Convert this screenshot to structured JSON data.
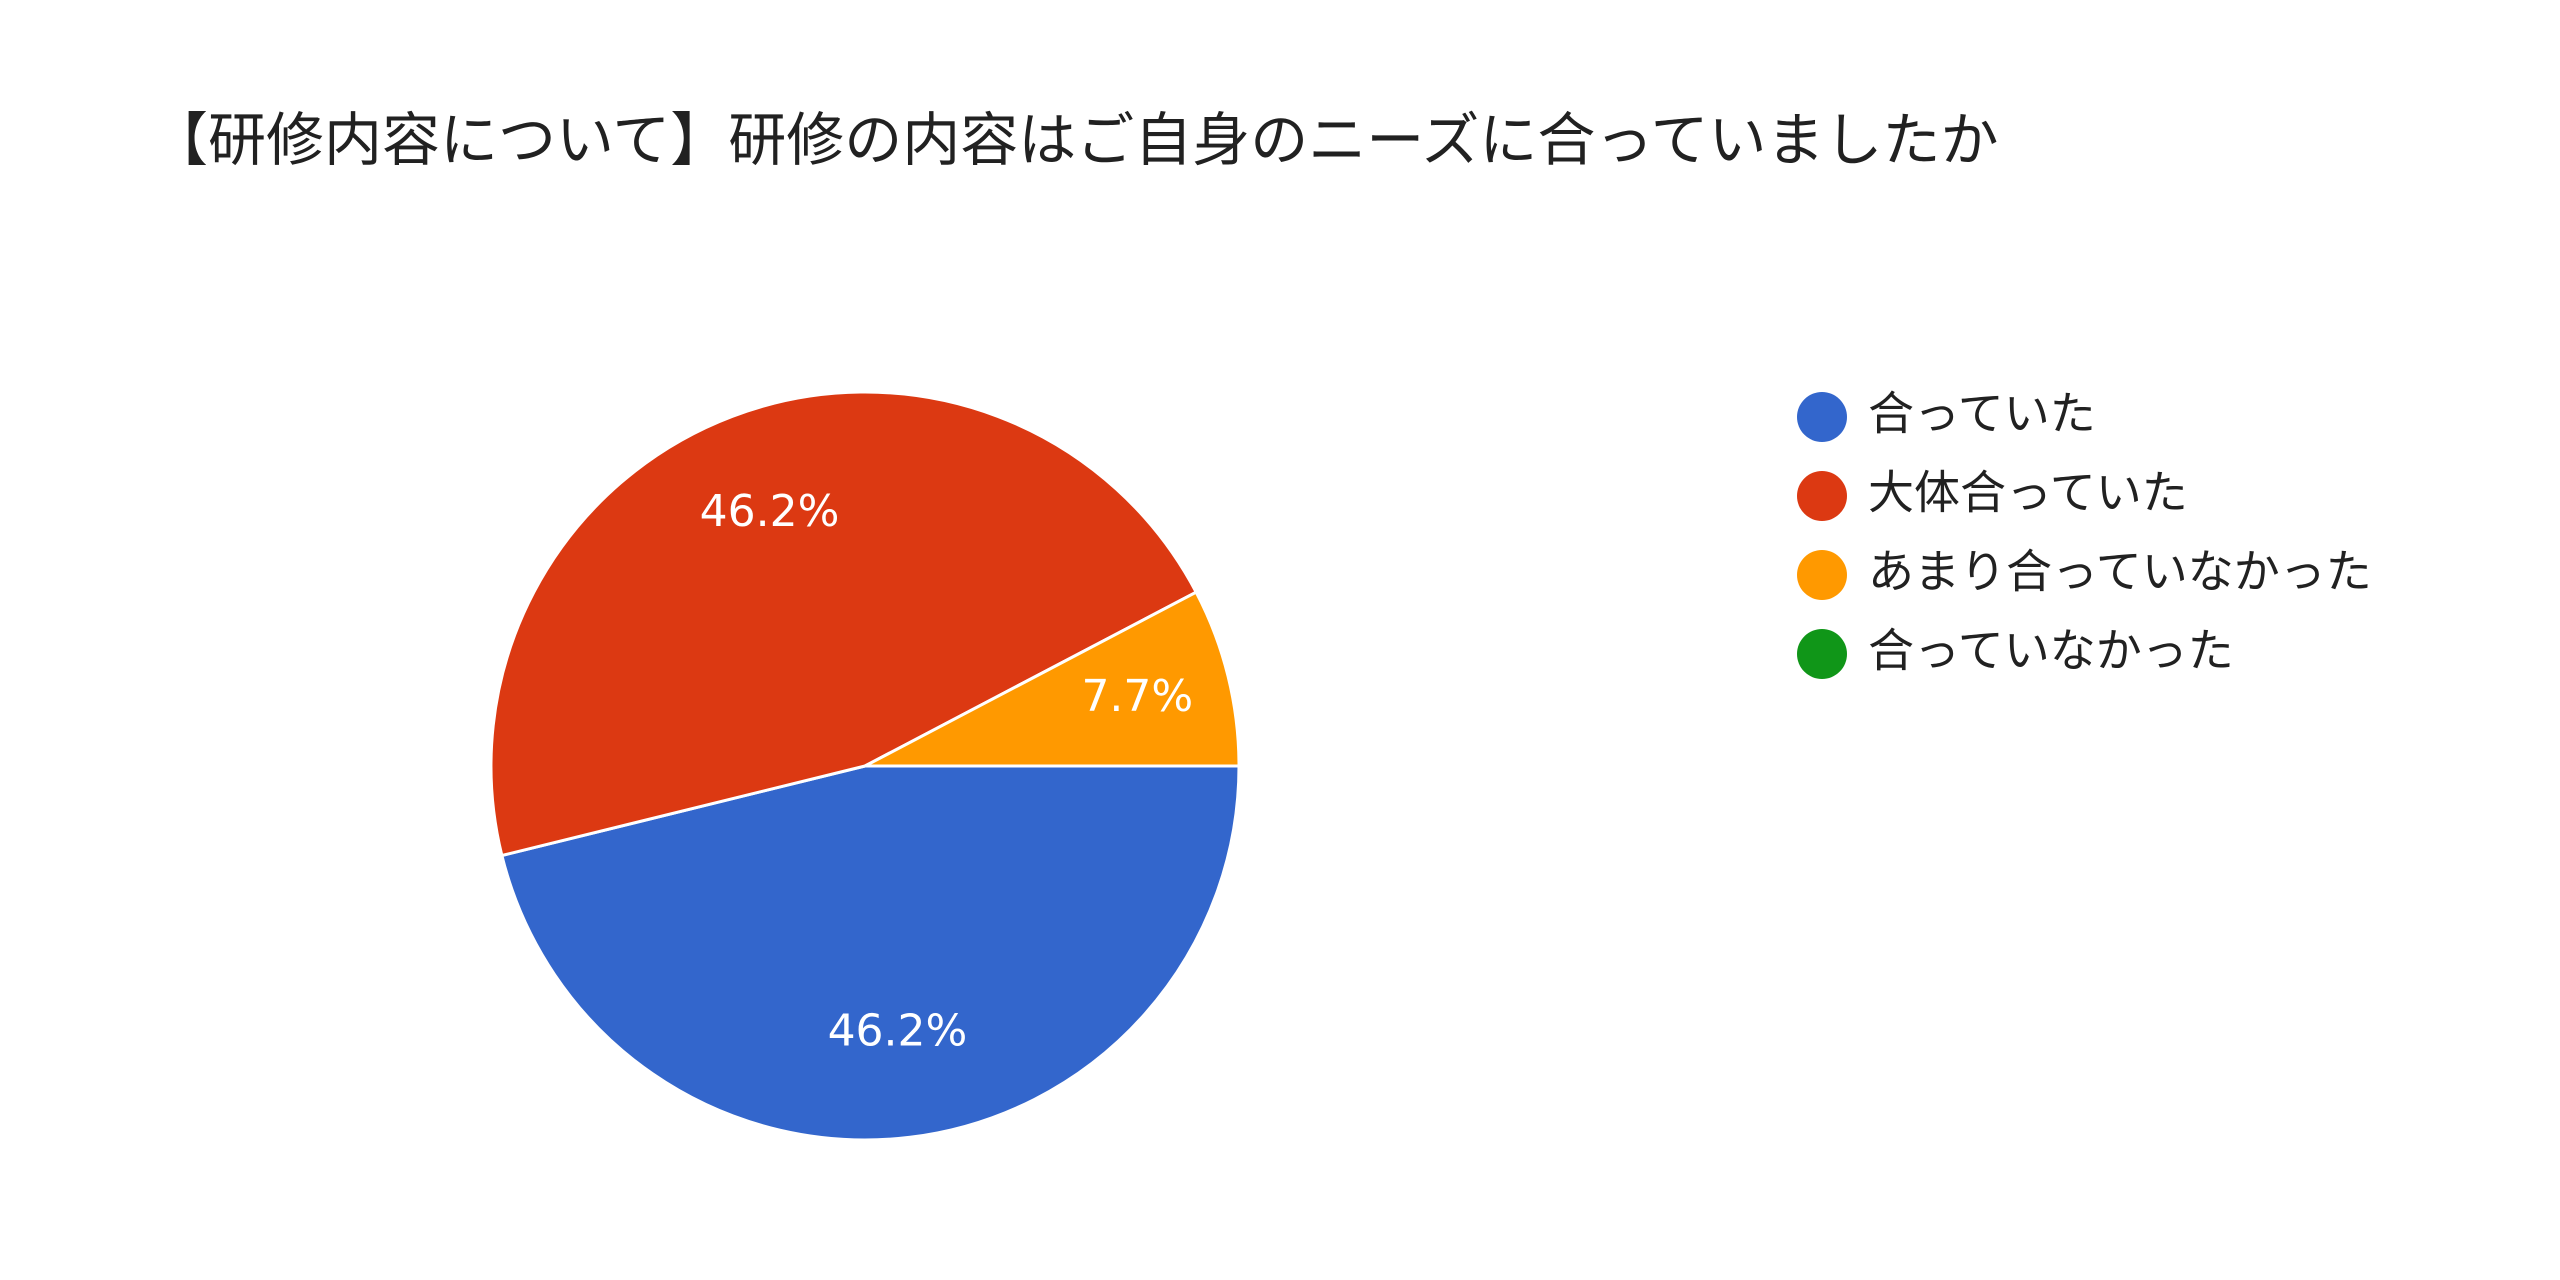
{
  "chart_data": {
    "type": "pie",
    "title": "【研修内容について】研修の内容はご自身のニーズに合っていましたか",
    "categories": [
      "合っていた",
      "大体合っていた",
      "あまり合っていなかった",
      "合っていなかった"
    ],
    "values": [
      46.2,
      46.2,
      7.7,
      0
    ],
    "value_labels": [
      "46.2%",
      "46.2%",
      "7.7%",
      null
    ],
    "colors": [
      "#3366cc",
      "#dc3912",
      "#ff9900",
      "#109618"
    ],
    "legend": "right"
  }
}
